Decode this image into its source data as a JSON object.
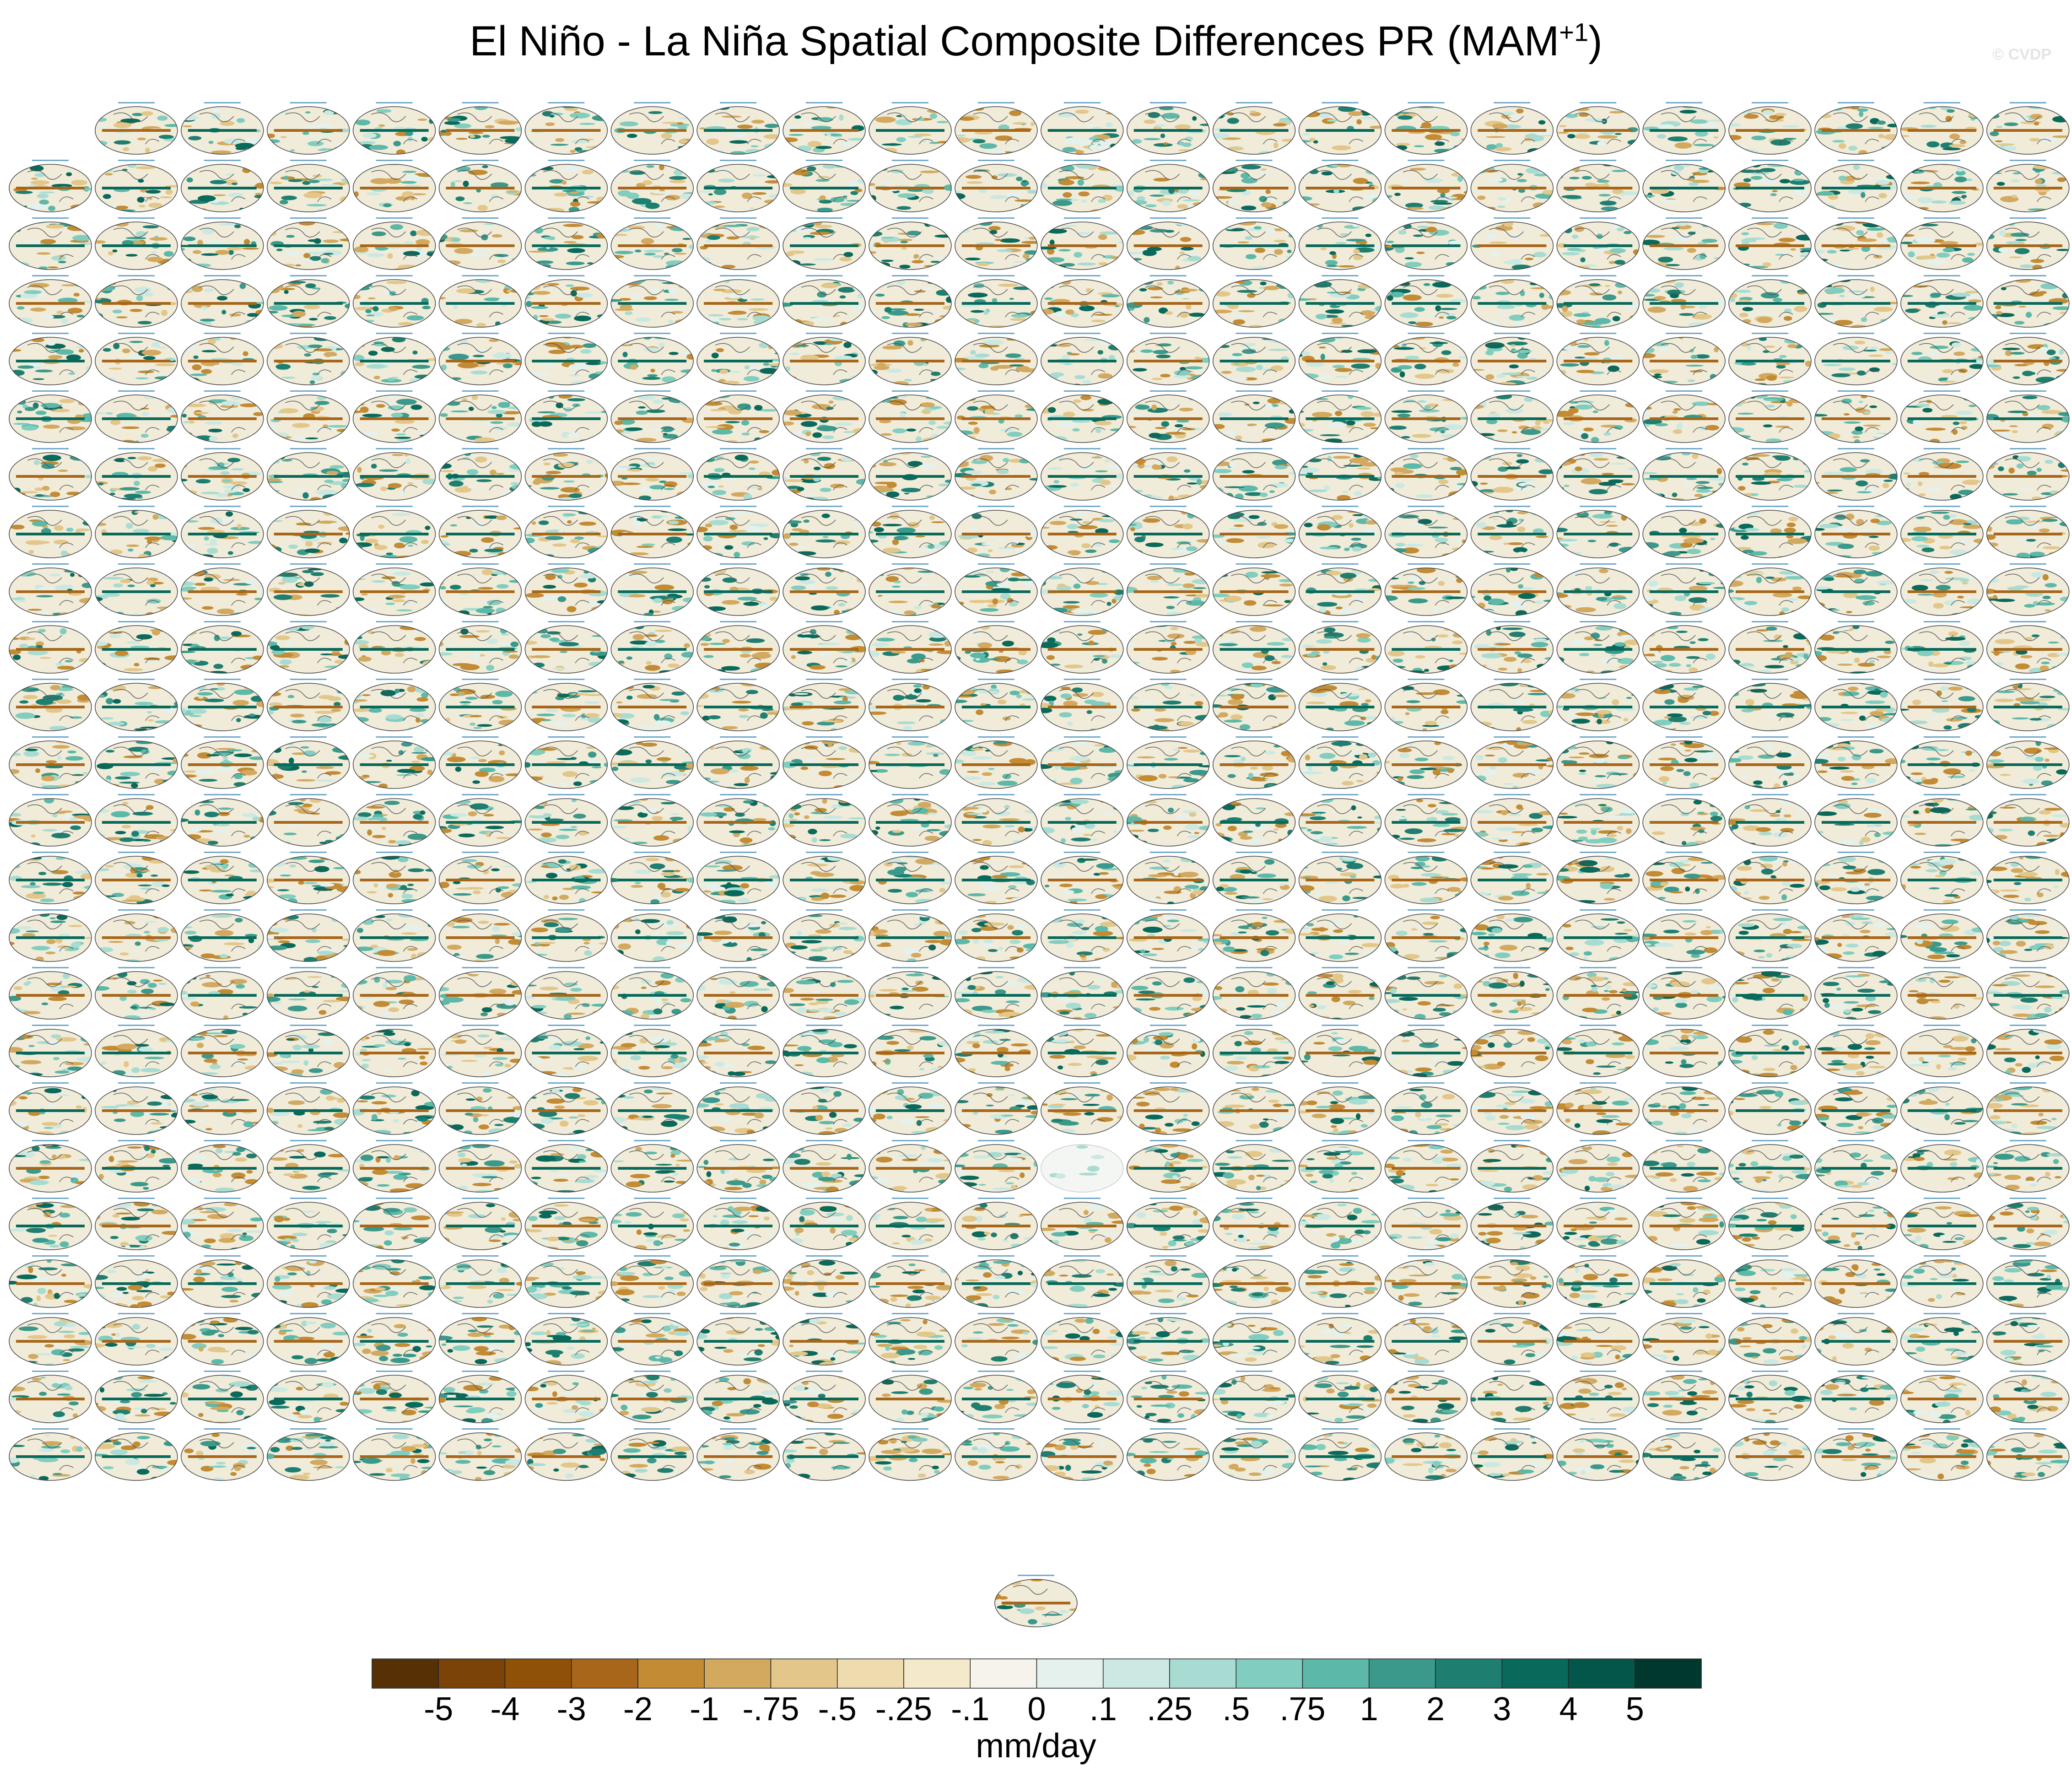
{
  "title": {
    "main": "El Niño - La Niña Spatial Composite Differences PR (MAM",
    "sup": "+1",
    "close": ")"
  },
  "watermark": "© CVDP",
  "chart_data": {
    "type": "heatmap",
    "title": "El Niño - La Niña Spatial Composite Differences PR (MAM+1)",
    "variable": "PR",
    "season": "MAM+1",
    "projection": "global map panels (ensemble members)",
    "grid": {
      "columns": 24,
      "rows": 25,
      "first_row_columns": 23,
      "final_row_panels": 1,
      "blank_panel_row": 18,
      "blank_panel_col": 12
    },
    "colorbar": {
      "units": "mm/day",
      "labels": [
        "-5",
        "-4",
        "-3",
        "-2",
        "-1",
        "-.75",
        "-.5",
        "-.25",
        "-.1",
        "0",
        ".1",
        ".25",
        ".5",
        ".75",
        "1",
        "2",
        "3",
        "4",
        "5"
      ],
      "levels": [
        -5,
        -4,
        -3,
        -2,
        -1,
        -0.75,
        -0.5,
        -0.25,
        -0.1,
        0,
        0.1,
        0.25,
        0.5,
        0.75,
        1,
        2,
        3,
        4,
        5
      ],
      "colors": [
        "#563105",
        "#7b4307",
        "#8f5108",
        "#a7661a",
        "#c28b34",
        "#d3a95f",
        "#e3c78a",
        "#efdcae",
        "#f5e9cc",
        "#f5f3ec",
        "#e5f1ed",
        "#cbe9e2",
        "#a8dcd2",
        "#81cdbf",
        "#5cb8a8",
        "#3a998b",
        "#1e7f71",
        "#09695b",
        "#03574a",
        "#01382e"
      ]
    }
  }
}
